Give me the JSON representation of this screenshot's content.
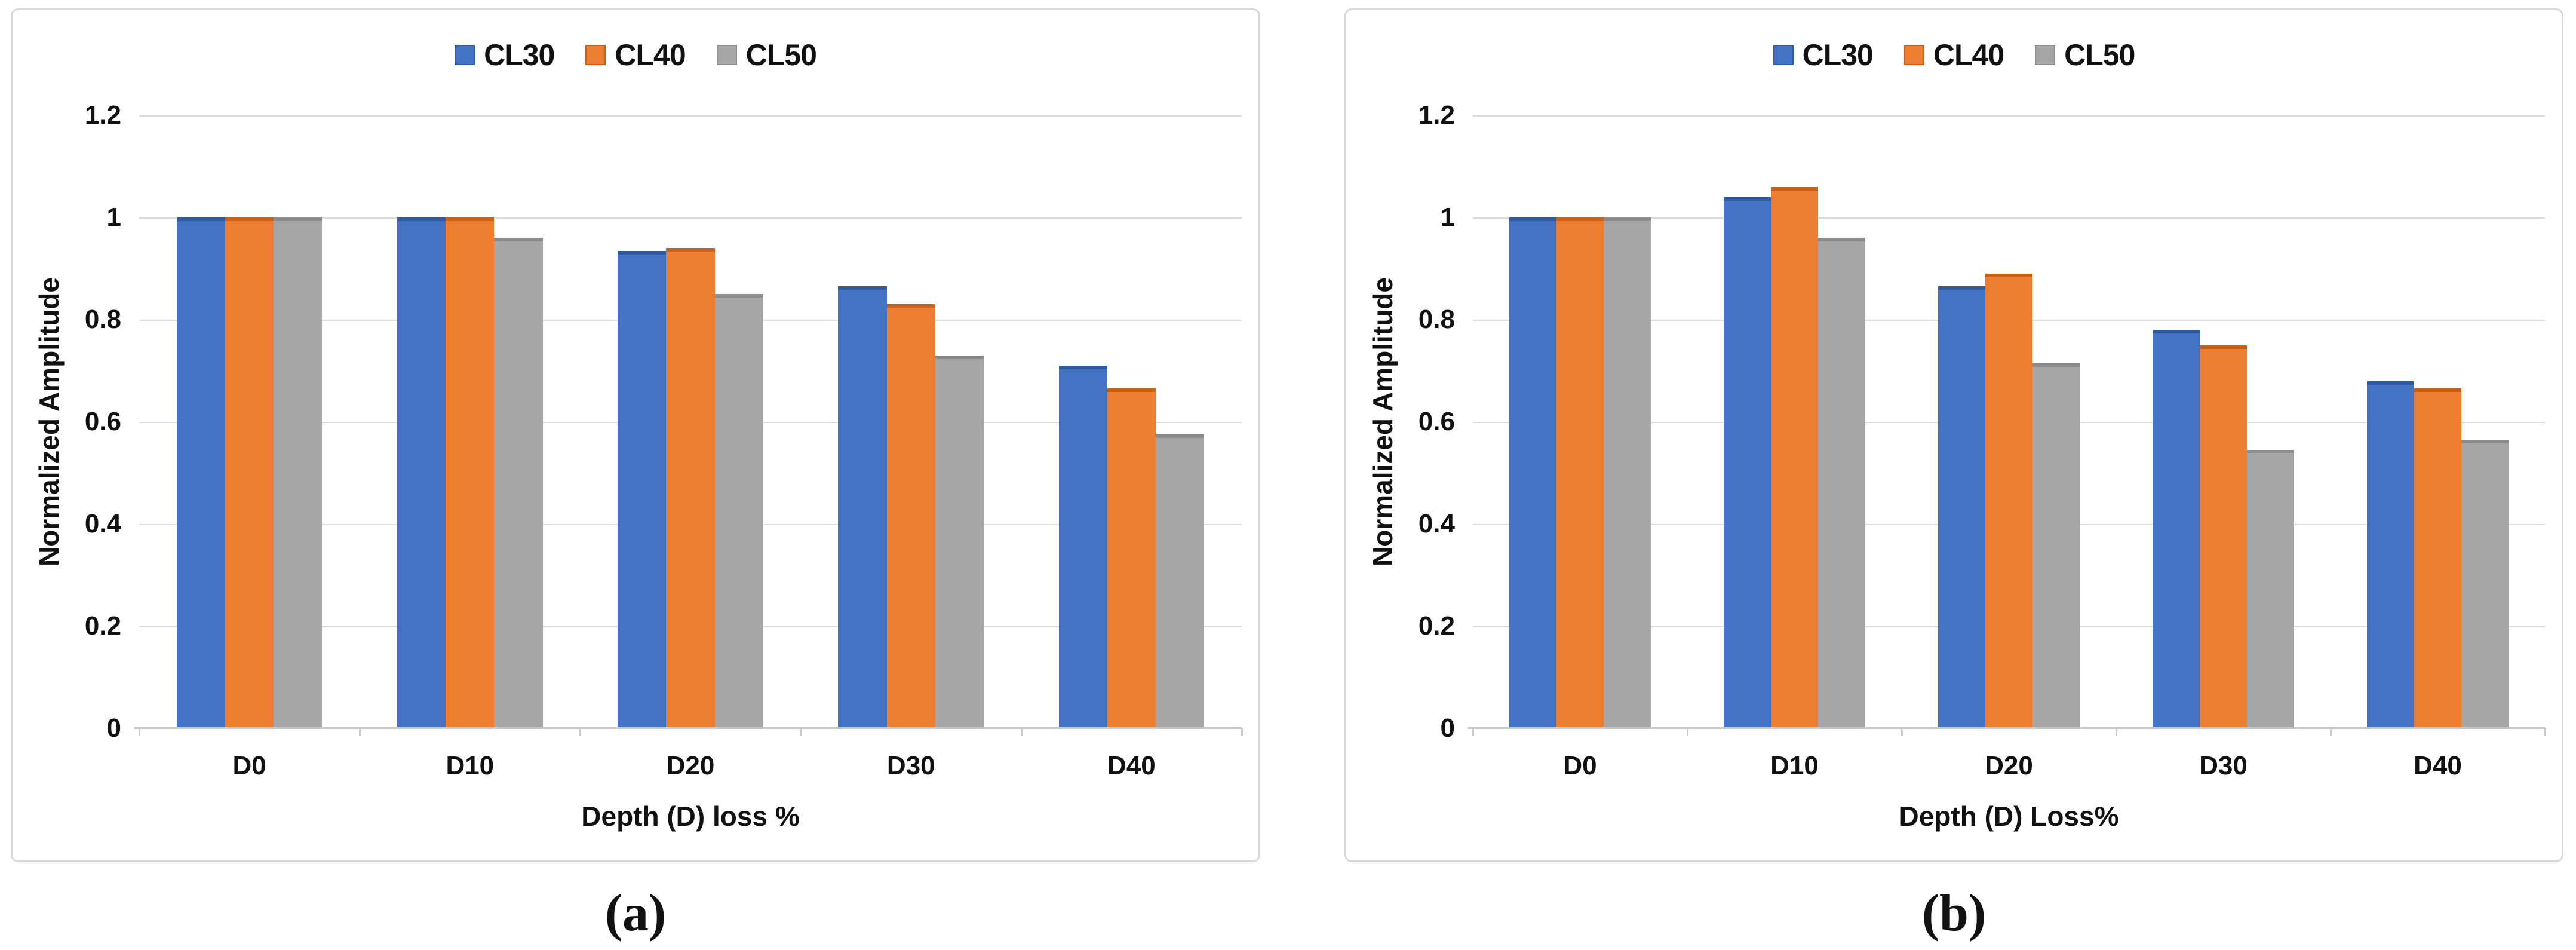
{
  "figure": {
    "captions": {
      "a": "(a)",
      "b": "(b)"
    },
    "colors": {
      "gridline": "#dcdcdc",
      "axis_line": "#c6c9ca",
      "panel_border": "#d9d9d9",
      "text": "#111111"
    }
  },
  "chart_data": [
    {
      "type": "bar",
      "panel": "a",
      "caption": "(a)",
      "categories": [
        "D0",
        "D10",
        "D20",
        "D30",
        "D40"
      ],
      "series": [
        {
          "name": "CL30",
          "color": "#4472C4",
          "cap": "#2F5B9E",
          "values": [
            1.0,
            1.0,
            0.935,
            0.865,
            0.71
          ]
        },
        {
          "name": "CL40",
          "color": "#ED7D31",
          "cap": "#C96218",
          "values": [
            1.0,
            1.0,
            0.94,
            0.83,
            0.665
          ]
        },
        {
          "name": "CL50",
          "color": "#A6A6A6",
          "cap": "#8C8C8C",
          "values": [
            1.0,
            0.96,
            0.85,
            0.73,
            0.575
          ]
        }
      ],
      "xlabel": "Depth (D) loss %",
      "ylabel": "Normalized Amplitude",
      "ylim": [
        0,
        1.2
      ],
      "yticks": [
        0,
        0.2,
        0.4,
        0.6,
        0.8,
        1,
        1.2
      ],
      "ytick_labels": [
        "0",
        "0.2",
        "0.4",
        "0.6",
        "0.8",
        "1",
        "1.2"
      ],
      "legend_position": "top-center",
      "grid": true
    },
    {
      "type": "bar",
      "panel": "b",
      "caption": "(b)",
      "categories": [
        "D0",
        "D10",
        "D20",
        "D30",
        "D40"
      ],
      "series": [
        {
          "name": "CL30",
          "color": "#4472C4",
          "cap": "#2F5B9E",
          "values": [
            1.0,
            1.04,
            0.865,
            0.78,
            0.68
          ]
        },
        {
          "name": "CL40",
          "color": "#ED7D31",
          "cap": "#C96218",
          "values": [
            1.0,
            1.06,
            0.89,
            0.75,
            0.665
          ]
        },
        {
          "name": "CL50",
          "color": "#A6A6A6",
          "cap": "#8C8C8C",
          "values": [
            1.0,
            0.96,
            0.715,
            0.545,
            0.565
          ]
        }
      ],
      "xlabel": "Depth (D) Loss%",
      "ylabel": "Normalized Amplitude",
      "ylim": [
        0,
        1.2
      ],
      "yticks": [
        0,
        0.2,
        0.4,
        0.6,
        0.8,
        1,
        1.2
      ],
      "ytick_labels": [
        "0",
        "0.2",
        "0.4",
        "0.6",
        "0.8",
        "1",
        "1.2"
      ],
      "legend_position": "top-center",
      "grid": true
    }
  ]
}
